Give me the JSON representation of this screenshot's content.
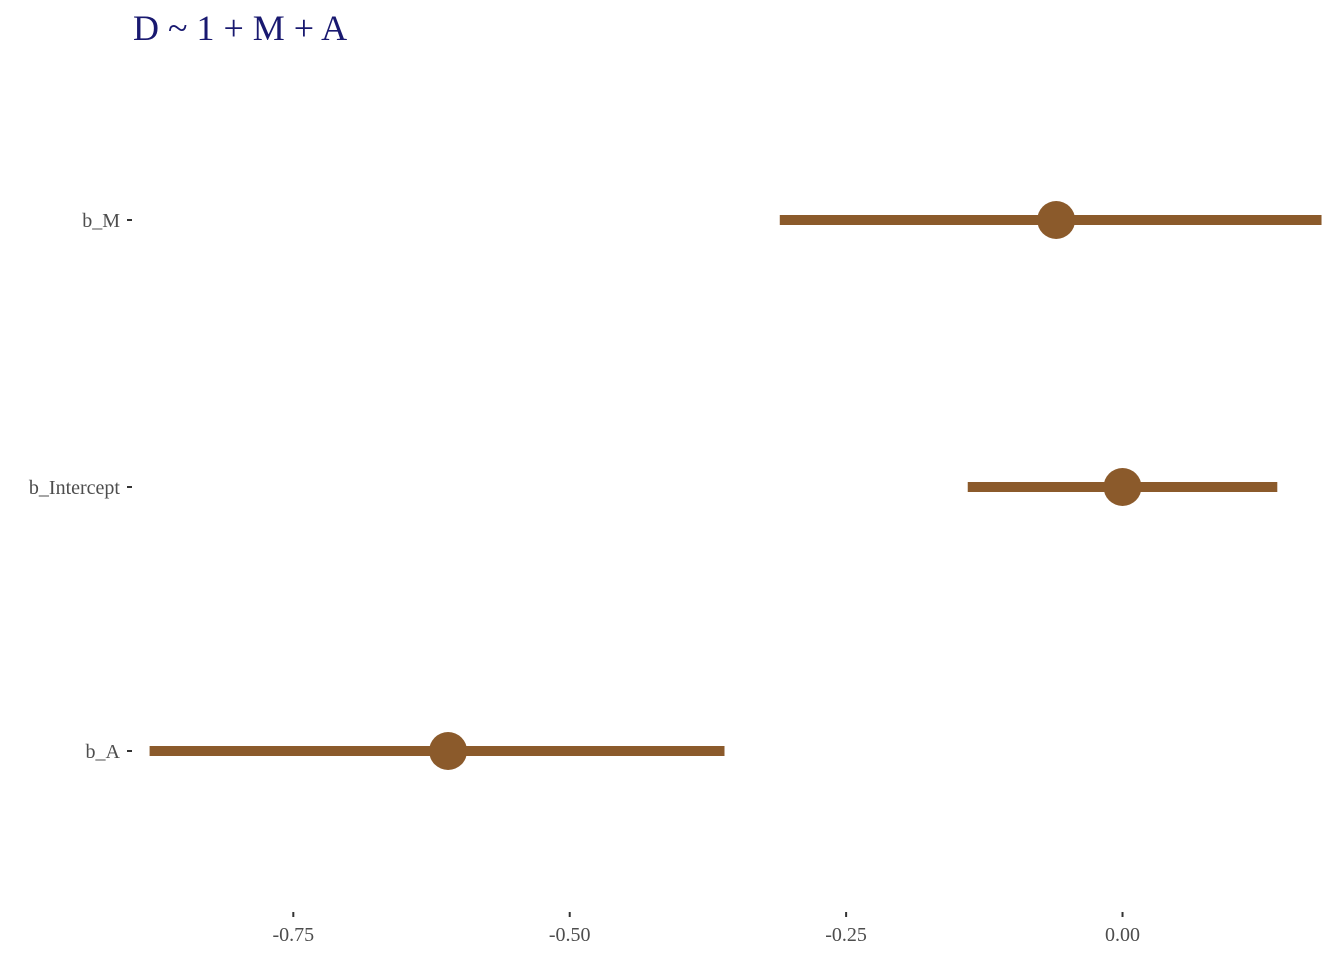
{
  "chart_data": {
    "type": "pointrange",
    "title": "D ~ 1 + M + A",
    "xlabel": "",
    "ylabel": "",
    "xlim": [
      -0.895,
      0.175
    ],
    "x_ticks": [
      -0.75,
      -0.5,
      -0.25,
      0.0
    ],
    "x_tick_labels": [
      "-0.75",
      "-0.50",
      "-0.25",
      "0.00"
    ],
    "categories": [
      "b_M",
      "b_Intercept",
      "b_A"
    ],
    "estimates": [
      {
        "name": "b_M",
        "estimate": -0.06,
        "lower": -0.31,
        "upper": 0.18
      },
      {
        "name": "b_Intercept",
        "estimate": 0.0,
        "lower": -0.14,
        "upper": 0.14
      },
      {
        "name": "b_A",
        "estimate": -0.61,
        "lower": -0.88,
        "upper": -0.36
      }
    ],
    "grid": false,
    "colors": {
      "title": "#191970",
      "point": "#8b5a2b",
      "tick_text": "#4d4d4d",
      "tick_mark": "#333333"
    }
  }
}
